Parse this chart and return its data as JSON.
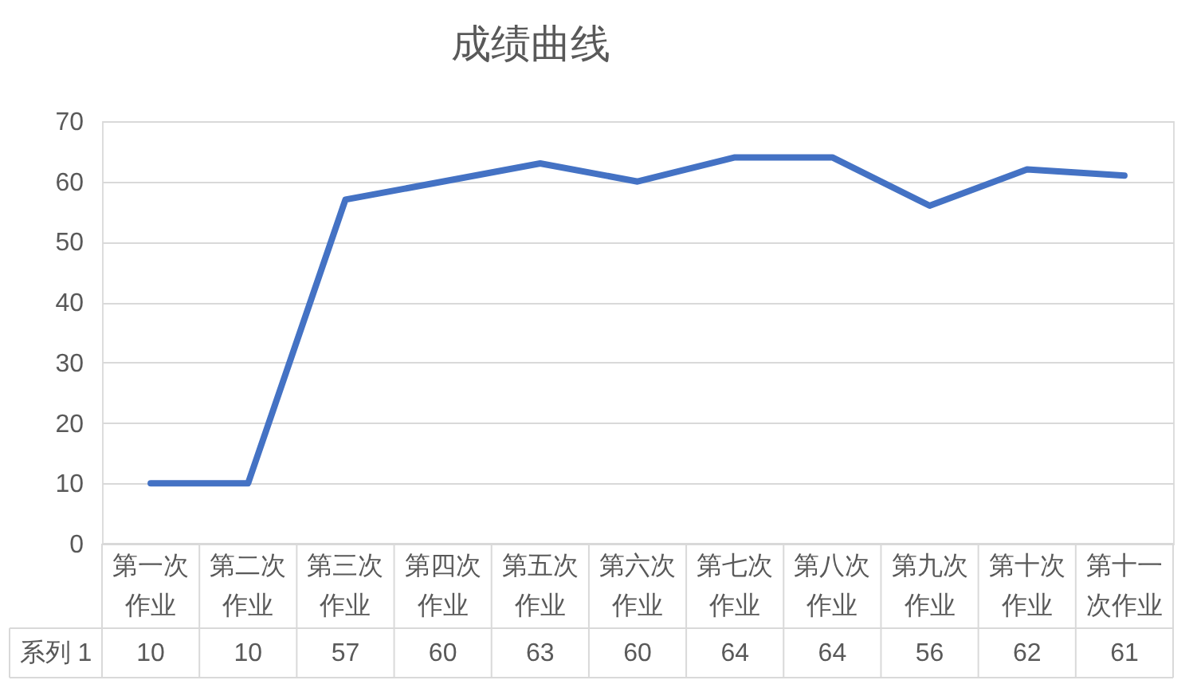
{
  "chart_data": {
    "type": "line",
    "title": "成绩曲线",
    "categories": [
      "第一次作业",
      "第二次作业",
      "第三次作业",
      "第四次作业",
      "第五次作业",
      "第六次作业",
      "第七次作业",
      "第八次作业",
      "第九次作业",
      "第十次作业",
      "第十一次作业"
    ],
    "series": [
      {
        "name": "系列 1",
        "color": "#4472c4",
        "values": [
          10,
          10,
          57,
          60,
          63,
          60,
          64,
          64,
          56,
          62,
          61
        ]
      }
    ],
    "ylim": [
      0,
      70
    ],
    "yticks": [
      0,
      10,
      20,
      30,
      40,
      50,
      60,
      70
    ],
    "grid": "y",
    "data_labels": true,
    "line_style": "solid"
  }
}
